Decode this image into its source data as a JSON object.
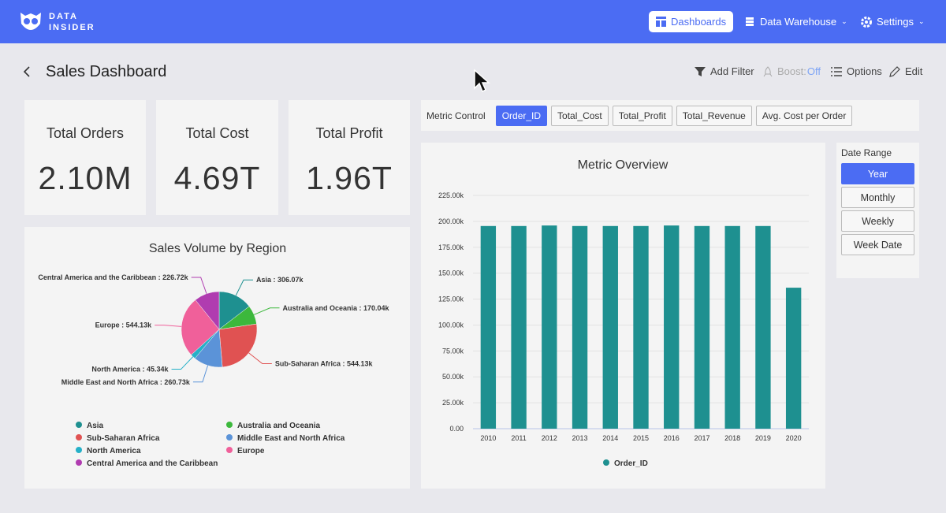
{
  "header": {
    "logo": [
      "DATA",
      "INSIDER"
    ],
    "nav": [
      "Dashboards",
      "Data Warehouse",
      "Settings"
    ]
  },
  "page": {
    "title": "Sales Dashboard",
    "actions": {
      "filter": "Add Filter",
      "boost": "Boost:",
      "boost_state": "Off",
      "options": "Options",
      "edit": "Edit"
    }
  },
  "kpis": [
    {
      "label": "Total Orders",
      "value": "2.10M"
    },
    {
      "label": "Total Cost",
      "value": "4.69T"
    },
    {
      "label": "Total Profit",
      "value": "1.96T"
    }
  ],
  "metric_control": {
    "label": "Metric Control",
    "options": [
      "Order_ID",
      "Total_Cost",
      "Total_Profit",
      "Total_Revenue",
      "Avg. Cost per Order"
    ],
    "selected": "Order_ID"
  },
  "date_range": {
    "label": "Date Range",
    "options": [
      "Year",
      "Monthly",
      "Weekly",
      "Week Date"
    ],
    "selected": "Year"
  },
  "chart_data": [
    {
      "type": "pie",
      "title": "Sales Volume by Region",
      "categories": [
        "Asia",
        "Australia and Oceania",
        "Sub-Saharan Africa",
        "Middle East and North Africa",
        "North America",
        "Europe",
        "Central America and the Caribbean"
      ],
      "values": [
        306.07,
        170.04,
        544.13,
        260.73,
        45.34,
        544.13,
        226.72
      ],
      "value_labels": [
        "Asia : 306.07k",
        "Australia and Oceania : 170.04k",
        "Sub-Saharan Africa : 544.13k",
        "Middle East and North Africa : 260.73k",
        "North America : 45.34k",
        "Europe : 544.13k",
        "Central America and the Caribbean : 226.72k"
      ],
      "colors": [
        "#1e9090",
        "#3cb83c",
        "#e05252",
        "#5b93d8",
        "#25b0c8",
        "#f0609a",
        "#b03cb0"
      ]
    },
    {
      "type": "bar",
      "title": "Metric Overview",
      "categories": [
        "2010",
        "2011",
        "2012",
        "2013",
        "2014",
        "2015",
        "2016",
        "2017",
        "2018",
        "2019",
        "2020"
      ],
      "series": [
        {
          "name": "Order_ID",
          "color": "#1e9090",
          "values": [
            195500,
            195500,
            196000,
            195500,
            195500,
            195500,
            196000,
            195500,
            195500,
            195500,
            136000
          ]
        }
      ],
      "ylim": [
        0,
        225000
      ],
      "yticks": [
        {
          "value": 0,
          "label": "0.00"
        },
        {
          "value": 25000,
          "label": "25.00k"
        },
        {
          "value": 50000,
          "label": "50.00k"
        },
        {
          "value": 75000,
          "label": "75.00k"
        },
        {
          "value": 100000,
          "label": "100.00k"
        },
        {
          "value": 125000,
          "label": "125.00k"
        },
        {
          "value": 150000,
          "label": "150.00k"
        },
        {
          "value": 175000,
          "label": "175.00k"
        },
        {
          "value": 200000,
          "label": "200.00k"
        },
        {
          "value": 225000,
          "label": "225.00k"
        }
      ],
      "grid": true
    }
  ]
}
